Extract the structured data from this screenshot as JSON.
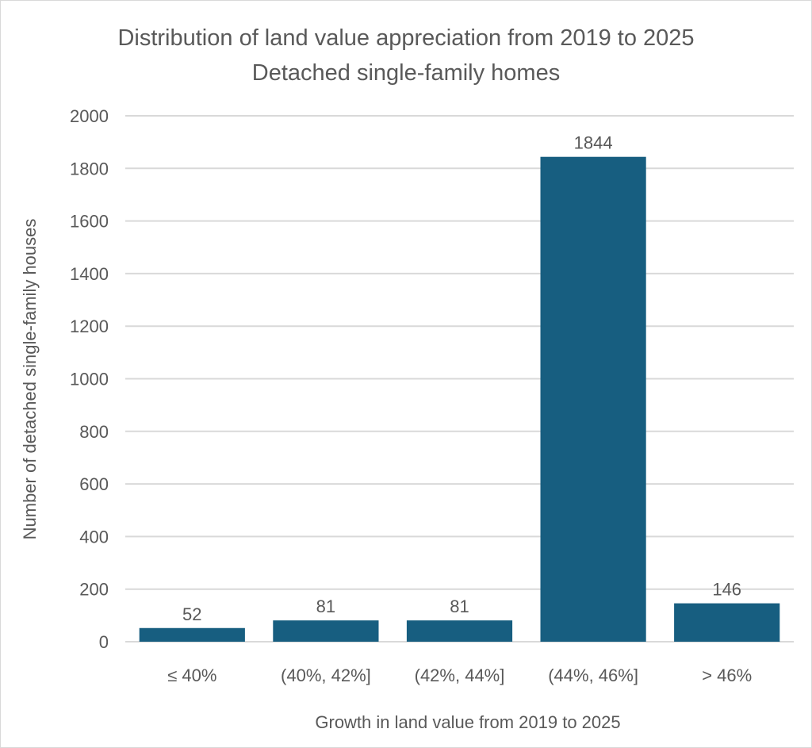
{
  "chart_data": {
    "type": "bar",
    "title": "Distribution of land value appreciation from 2019 to 2025",
    "subtitle": "Detached  single-family homes",
    "xlabel": "Growth in land value from 2019 to 2025",
    "ylabel": "Number of detached single-family houses",
    "categories": [
      "≤ 40%",
      "(40%, 42%]",
      "(42%, 44%]",
      "(44%, 46%]",
      "> 46%"
    ],
    "values": [
      52,
      81,
      81,
      1844,
      146
    ],
    "ylim": [
      0,
      2000
    ],
    "yticks": [
      0,
      200,
      400,
      600,
      800,
      1000,
      1200,
      1400,
      1600,
      1800,
      2000
    ],
    "grid": true,
    "legend": "none",
    "bar_color": "#175e80"
  }
}
